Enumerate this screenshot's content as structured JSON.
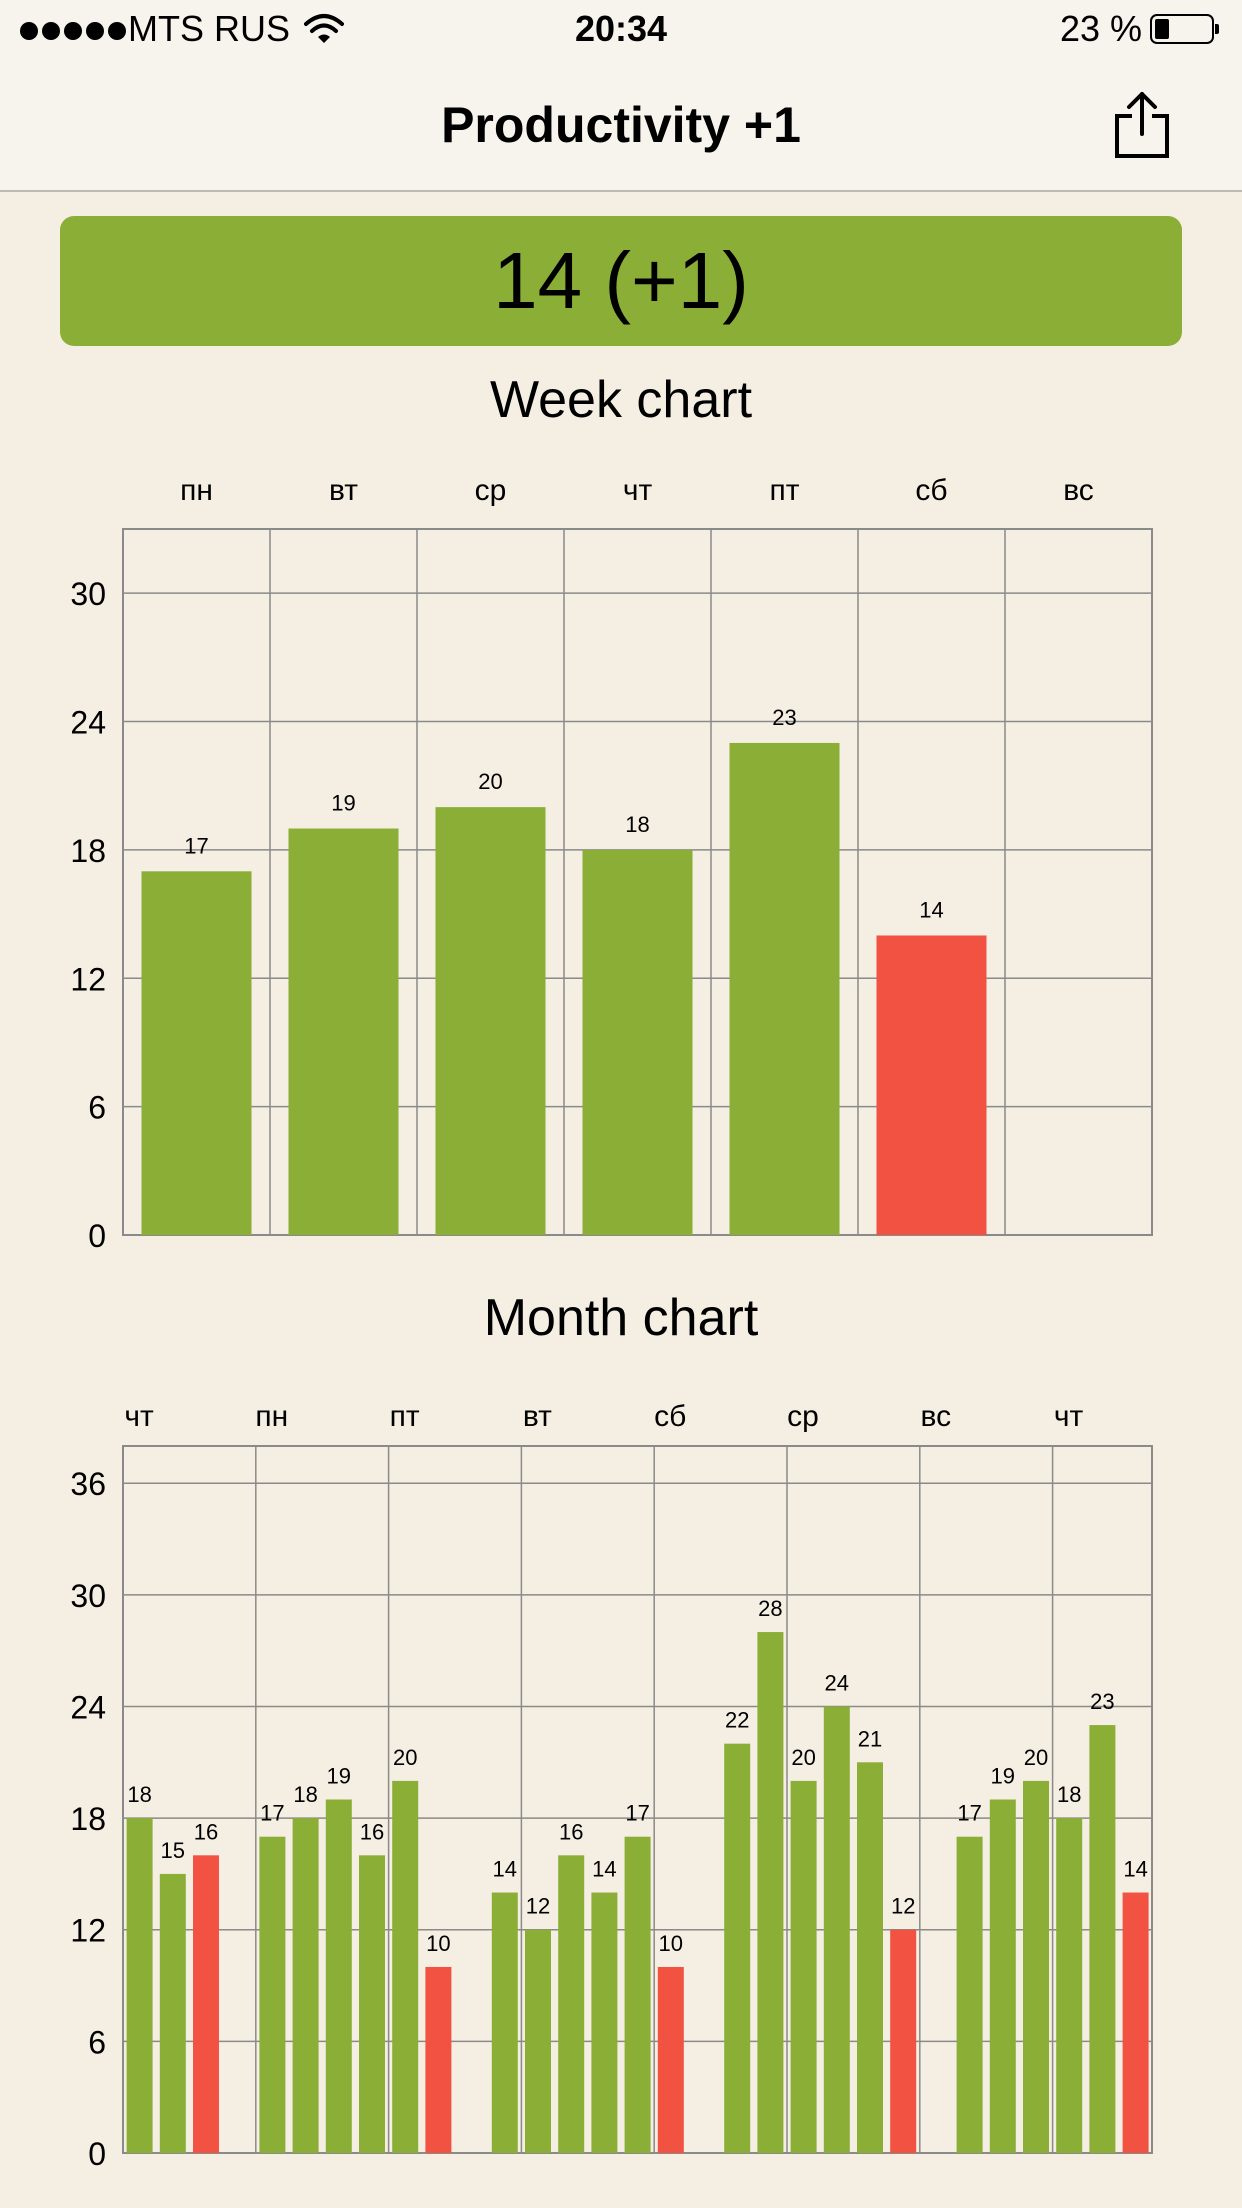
{
  "status_bar": {
    "carrier": "MTS RUS",
    "time": "20:34",
    "battery": "23 %",
    "battery_level": 0.23
  },
  "nav": {
    "title": "Productivity +1",
    "share_icon": "share-icon"
  },
  "score": {
    "text": "14 (+1)"
  },
  "colors": {
    "green": "#8bae37",
    "red": "#f25241",
    "grid": "#8a8a8a"
  },
  "week_chart": {
    "title": "Week chart",
    "chart_data": {
      "type": "bar",
      "categories": [
        "пн",
        "вт",
        "ср",
        "чт",
        "пт",
        "сб",
        "вс"
      ],
      "values": [
        17,
        19,
        20,
        18,
        23,
        14,
        null
      ],
      "highlight": [
        false,
        false,
        false,
        false,
        false,
        true,
        false
      ],
      "yticks": [
        0,
        6,
        12,
        18,
        24,
        30
      ],
      "ylim": [
        0,
        33
      ],
      "grid": true
    }
  },
  "month_chart": {
    "title": "Month chart",
    "chart_data": {
      "type": "bar",
      "week_labels": [
        "чт",
        "пн",
        "пт",
        "вт",
        "сб",
        "ср",
        "вс",
        "чт"
      ],
      "values": [
        18,
        15,
        16,
        null,
        17,
        18,
        19,
        16,
        20,
        10,
        null,
        14,
        12,
        16,
        14,
        17,
        10,
        null,
        22,
        28,
        20,
        24,
        21,
        12,
        null,
        17,
        19,
        20,
        18,
        23,
        14
      ],
      "highlight": [
        false,
        false,
        true,
        false,
        false,
        false,
        false,
        false,
        false,
        true,
        false,
        false,
        false,
        false,
        false,
        false,
        true,
        false,
        false,
        false,
        false,
        false,
        false,
        true,
        false,
        false,
        false,
        false,
        false,
        false,
        true
      ],
      "yticks": [
        0,
        6,
        12,
        18,
        24,
        30,
        36
      ],
      "ylim": [
        0,
        38
      ],
      "grid": true
    }
  }
}
